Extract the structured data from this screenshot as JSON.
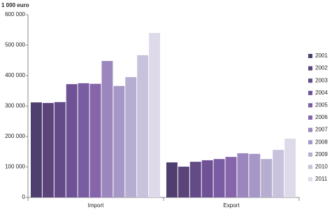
{
  "chart_data": {
    "type": "bar",
    "y_label": "1 000  euro",
    "categories": [
      "Import",
      "Export"
    ],
    "series": [
      {
        "name": "2001",
        "color": "#4f3f6e",
        "values": [
          312000,
          115000
        ]
      },
      {
        "name": "2002",
        "color": "#5a447a",
        "values": [
          310000,
          101000
        ]
      },
      {
        "name": "2003",
        "color": "#634b88",
        "values": [
          313000,
          117000
        ]
      },
      {
        "name": "2004",
        "color": "#6f5296",
        "values": [
          372000,
          122000
        ]
      },
      {
        "name": "2005",
        "color": "#7a5ca3",
        "values": [
          375000,
          126000
        ]
      },
      {
        "name": "2006",
        "color": "#8665aa",
        "values": [
          373000,
          133000
        ]
      },
      {
        "name": "2007",
        "color": "#9b87bd",
        "values": [
          448000,
          145000
        ]
      },
      {
        "name": "2008",
        "color": "#a698c6",
        "values": [
          366000,
          143000
        ]
      },
      {
        "name": "2009",
        "color": "#b6aed0",
        "values": [
          395000,
          126000
        ]
      },
      {
        "name": "2010",
        "color": "#c8c2dc",
        "values": [
          467000,
          156000
        ]
      },
      {
        "name": "2011",
        "color": "#dedaea",
        "values": [
          540000,
          193000
        ]
      }
    ],
    "ylim": [
      0,
      600000
    ],
    "yticks": [
      0,
      {
        "value": 100000,
        "label": "100 000"
      },
      {
        "value": 200000,
        "label": "200 000"
      },
      {
        "value": 300000,
        "label": "300 000"
      },
      {
        "value": 400000,
        "label": "400 000"
      },
      {
        "value": 500000,
        "label": "500 000"
      },
      {
        "value": 600000,
        "label": "600 000"
      }
    ],
    "grid": false,
    "legend": "right"
  }
}
